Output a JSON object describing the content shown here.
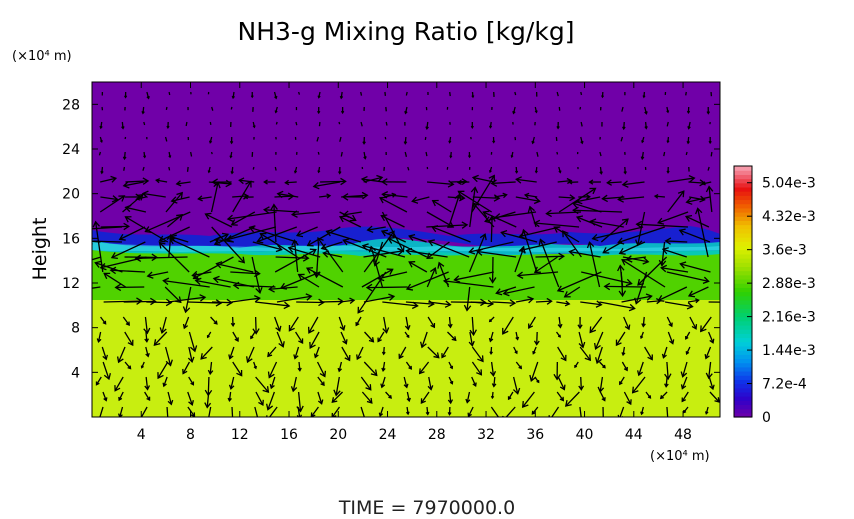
{
  "chart_data": {
    "type": "heatmap",
    "title": "NH3-g Mixing Ratio [kg/kg]",
    "xlabel": "",
    "ylabel": "Height",
    "x_unit": "(×10⁴ m)",
    "y_unit": "(×10⁴ m)",
    "xlim": [
      0,
      51
    ],
    "ylim": [
      0,
      30
    ],
    "x_ticks": [
      4,
      8,
      12,
      16,
      20,
      24,
      28,
      32,
      36,
      40,
      44,
      48
    ],
    "y_ticks": [
      4,
      8,
      12,
      16,
      20,
      24,
      28
    ],
    "colorbar": {
      "min": 0,
      "max": 0.0054,
      "tick_values": [
        0,
        0.00072,
        0.00144,
        0.00216,
        0.00288,
        0.0036,
        0.00432,
        0.00504
      ],
      "tick_labels": [
        "0",
        "7.2e-4",
        "1.44e-3",
        "2.16e-3",
        "2.88e-3",
        "3.6e-3",
        "4.32e-3",
        "5.04e-3"
      ]
    },
    "regions": [
      {
        "height_range": [
          0,
          10
        ],
        "value": 0.0036
      },
      {
        "height_range": [
          10,
          13
        ],
        "value": 0.0031
      },
      {
        "height_range": [
          13,
          15.5
        ],
        "value": 0.0026
      },
      {
        "height_range": [
          15.5,
          16.5
        ],
        "value": 0.0008
      },
      {
        "height_range": [
          16.5,
          30
        ],
        "value": 0.0
      }
    ],
    "time_label": "TIME  =  7970000.0",
    "colors": {
      "background_region": "#7000a8",
      "low_level": "#c8ee10",
      "mid_level": "#48d000"
    }
  }
}
